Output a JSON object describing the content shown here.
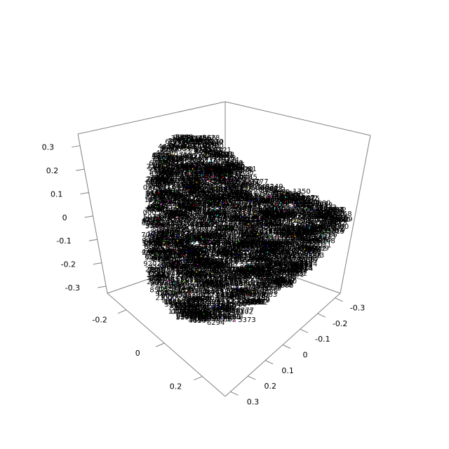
{
  "chart_data": {
    "type": "scatter",
    "title": "",
    "xlabel": "",
    "ylabel": "",
    "zlabel": "",
    "grid": false,
    "legend": "none",
    "point_label_color": "#000000",
    "point_marker_colors": [
      "#ff0000",
      "#00cd00",
      "#0000ff",
      "#ff00ff",
      "#00ffff",
      "#ffd700"
    ],
    "vertical_axis": {
      "ticks": [
        -0.3,
        -0.2,
        -0.1,
        0,
        0.1,
        0.2,
        0.3
      ],
      "tick_labels": [
        "-0.3",
        "-0.2",
        "-0.1",
        "0",
        "0.1",
        "0.2",
        "0.3"
      ],
      "range": [
        -0.33,
        0.35
      ]
    },
    "left_depth_axis": {
      "ticks": [
        -0.2,
        0,
        0.2
      ],
      "tick_labels": [
        "-0.2",
        "0",
        "0.2"
      ],
      "range": [
        -0.3,
        0.32
      ]
    },
    "right_depth_axis": {
      "ticks": [
        -0.3,
        -0.2,
        -0.1,
        0,
        0.1,
        0.2,
        0.3
      ],
      "tick_labels": [
        "-0.3",
        "-0.2",
        "-0.1",
        "0",
        "0.1",
        "0.2",
        "0.3"
      ],
      "range": [
        -0.33,
        0.33
      ]
    },
    "visible_point_labels": [
      "4970",
      "5162",
      "4807",
      "4081",
      "1350",
      "3210",
      "4610",
      "5373",
      "2990",
      "6640",
      "3780"
    ]
  }
}
